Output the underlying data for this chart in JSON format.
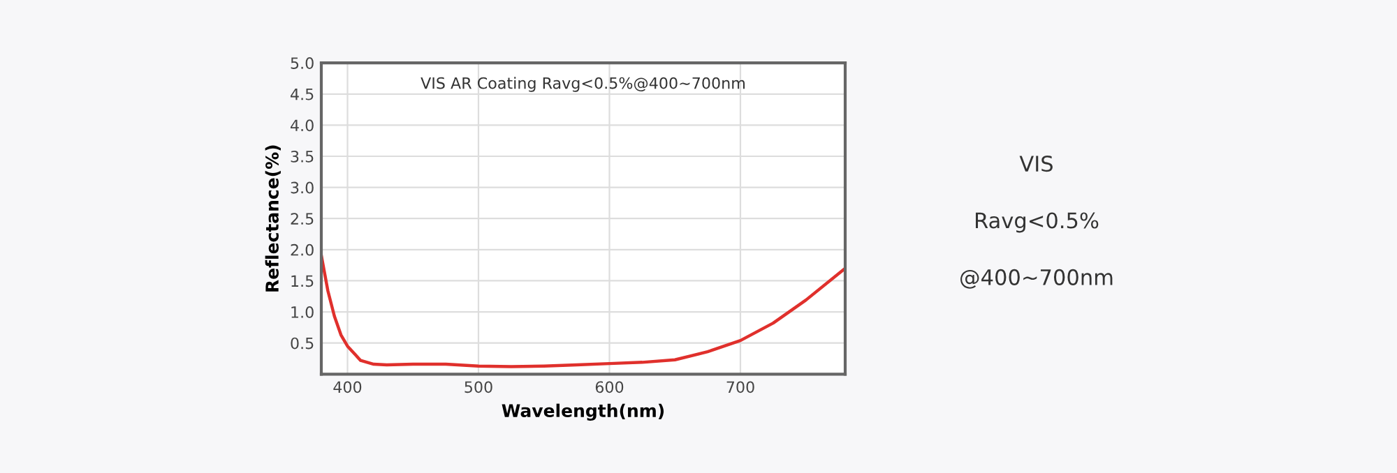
{
  "chart_data": {
    "type": "line",
    "title": "VIS AR Coating Ravg<0.5%@400~700nm",
    "xlabel": "Wavelength(nm)",
    "ylabel": "Reflectance(%)",
    "x": [
      380,
      385,
      390,
      395,
      400,
      410,
      420,
      430,
      450,
      475,
      500,
      525,
      550,
      575,
      600,
      625,
      650,
      675,
      700,
      725,
      750,
      780
    ],
    "series": [
      {
        "color": "#e0302c",
        "values": [
          1.91,
          1.34,
          0.93,
          0.63,
          0.45,
          0.22,
          0.16,
          0.15,
          0.16,
          0.16,
          0.13,
          0.12,
          0.13,
          0.15,
          0.17,
          0.19,
          0.23,
          0.36,
          0.54,
          0.82,
          1.19,
          1.7
        ]
      }
    ],
    "xlim": [
      380,
      780
    ],
    "xticks": [
      400,
      500,
      600,
      700
    ],
    "ylim": [
      0,
      5
    ],
    "yticks": [
      {
        "value": 0,
        "label": null
      },
      0.5,
      {
        "value": 1,
        "label": "1.0"
      },
      1.5,
      {
        "value": 2,
        "label": "2.0"
      },
      2.5,
      {
        "value": 3,
        "label": "3.0"
      },
      3.5,
      {
        "value": 4,
        "label": "4.0"
      },
      4.5,
      {
        "value": 5,
        "label": "5.0"
      }
    ],
    "grid": true,
    "legend": false,
    "marker": "none",
    "line_style": "solid",
    "annotations": [
      "VIS",
      "Ravg<0.5%",
      "@400~700nm"
    ]
  }
}
